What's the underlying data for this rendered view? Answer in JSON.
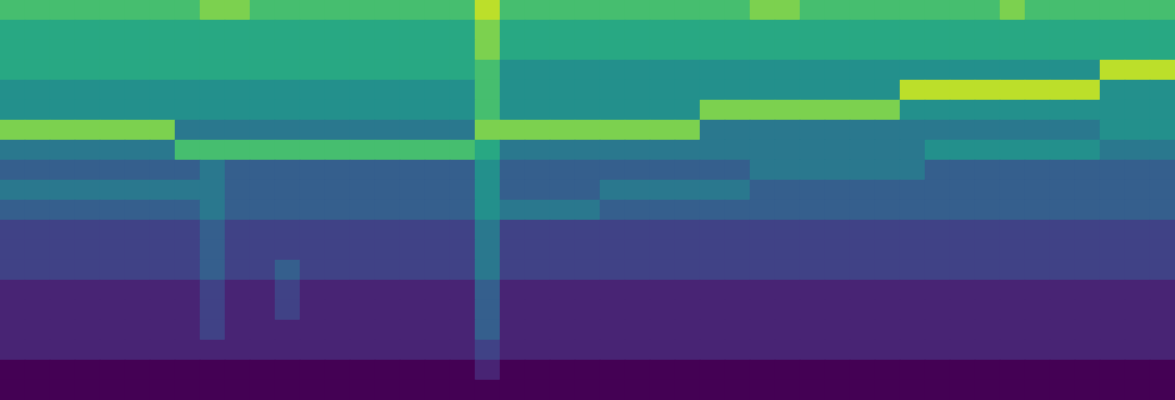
{
  "chart_data": {
    "type": "heatmap",
    "tick_labels": false,
    "color": "viridis",
    "zlim": [
      0,
      10
    ],
    "values": [
      [
        7,
        7,
        7,
        7,
        7,
        7,
        7,
        7,
        8,
        8,
        7,
        7,
        7,
        7,
        7,
        7,
        7,
        7,
        7,
        9,
        7,
        7,
        7,
        7,
        7,
        7,
        7,
        7,
        7,
        7,
        8,
        8,
        7,
        7,
        7,
        7,
        7,
        7,
        7,
        7,
        8,
        7,
        7,
        7,
        7,
        7,
        7
      ],
      [
        6,
        6,
        6,
        6,
        6,
        6,
        6,
        6,
        6,
        6,
        6,
        6,
        6,
        6,
        6,
        6,
        6,
        6,
        6,
        8,
        6,
        6,
        6,
        6,
        6,
        6,
        6,
        6,
        6,
        6,
        6,
        6,
        6,
        6,
        6,
        6,
        6,
        6,
        6,
        6,
        6,
        6,
        6,
        6,
        6,
        6,
        6
      ],
      [
        6,
        6,
        6,
        6,
        6,
        6,
        6,
        6,
        6,
        6,
        6,
        6,
        6,
        6,
        6,
        6,
        6,
        6,
        6,
        8,
        6,
        6,
        6,
        6,
        6,
        6,
        6,
        6,
        6,
        6,
        6,
        6,
        6,
        6,
        6,
        6,
        6,
        6,
        6,
        6,
        6,
        6,
        6,
        6,
        6,
        6,
        6
      ],
      [
        6,
        6,
        6,
        6,
        6,
        6,
        6,
        6,
        6,
        6,
        6,
        6,
        6,
        6,
        6,
        6,
        6,
        6,
        6,
        7,
        5,
        5,
        5,
        5,
        5,
        5,
        5,
        5,
        5,
        5,
        5,
        5,
        5,
        5,
        5,
        5,
        5,
        5,
        5,
        5,
        5,
        5,
        5,
        5,
        9,
        9,
        9
      ],
      [
        5,
        5,
        5,
        5,
        5,
        5,
        5,
        5,
        5,
        5,
        5,
        5,
        5,
        5,
        5,
        5,
        5,
        5,
        5,
        7,
        5,
        5,
        5,
        5,
        5,
        5,
        5,
        5,
        5,
        5,
        5,
        5,
        5,
        5,
        5,
        5,
        9,
        9,
        9,
        9,
        9,
        9,
        9,
        9,
        5,
        5,
        5
      ],
      [
        5,
        5,
        5,
        5,
        5,
        5,
        5,
        5,
        5,
        5,
        5,
        5,
        5,
        5,
        5,
        5,
        5,
        5,
        5,
        7,
        5,
        5,
        5,
        5,
        5,
        5,
        5,
        5,
        8,
        8,
        8,
        8,
        8,
        8,
        8,
        8,
        5,
        5,
        5,
        5,
        5,
        5,
        5,
        5,
        5,
        5,
        5
      ],
      [
        8,
        8,
        8,
        8,
        8,
        8,
        8,
        4,
        4,
        4,
        4,
        4,
        4,
        4,
        4,
        4,
        4,
        4,
        4,
        8,
        8,
        8,
        8,
        8,
        8,
        8,
        8,
        8,
        4,
        4,
        4,
        4,
        4,
        4,
        4,
        4,
        4,
        4,
        4,
        4,
        4,
        4,
        4,
        4,
        5,
        5,
        5
      ],
      [
        4,
        4,
        4,
        4,
        4,
        4,
        4,
        7,
        7,
        7,
        7,
        7,
        7,
        7,
        7,
        7,
        7,
        7,
        7,
        6,
        4,
        4,
        4,
        4,
        4,
        4,
        4,
        4,
        4,
        4,
        4,
        4,
        4,
        4,
        4,
        4,
        4,
        5,
        5,
        5,
        5,
        5,
        5,
        5,
        4,
        4,
        4
      ],
      [
        3,
        3,
        3,
        3,
        3,
        3,
        3,
        3,
        4,
        3,
        3,
        3,
        3,
        3,
        3,
        3,
        3,
        3,
        3,
        5,
        3,
        3,
        3,
        3,
        3,
        3,
        3,
        3,
        3,
        3,
        4,
        4,
        4,
        4,
        4,
        4,
        4,
        3,
        3,
        3,
        3,
        3,
        3,
        3,
        3,
        3,
        3
      ],
      [
        4,
        4,
        4,
        4,
        4,
        4,
        4,
        4,
        4,
        3,
        3,
        3,
        3,
        3,
        3,
        3,
        3,
        3,
        3,
        5,
        3,
        3,
        3,
        3,
        4,
        4,
        4,
        4,
        4,
        4,
        3,
        3,
        3,
        3,
        3,
        3,
        3,
        3,
        3,
        3,
        3,
        3,
        3,
        3,
        3,
        3,
        3
      ],
      [
        3,
        3,
        3,
        3,
        3,
        3,
        3,
        3,
        4,
        3,
        3,
        3,
        3,
        3,
        3,
        3,
        3,
        3,
        3,
        5,
        4,
        4,
        4,
        4,
        3,
        3,
        3,
        3,
        3,
        3,
        3,
        3,
        3,
        3,
        3,
        3,
        3,
        3,
        3,
        3,
        3,
        3,
        3,
        3,
        3,
        3,
        3
      ],
      [
        2,
        2,
        2,
        2,
        2,
        2,
        2,
        2,
        3,
        2,
        2,
        2,
        2,
        2,
        2,
        2,
        2,
        2,
        2,
        4,
        2,
        2,
        2,
        2,
        2,
        2,
        2,
        2,
        2,
        2,
        2,
        2,
        2,
        2,
        2,
        2,
        2,
        2,
        2,
        2,
        2,
        2,
        2,
        2,
        2,
        2,
        2
      ],
      [
        2,
        2,
        2,
        2,
        2,
        2,
        2,
        2,
        3,
        2,
        2,
        2,
        2,
        2,
        2,
        2,
        2,
        2,
        2,
        4,
        2,
        2,
        2,
        2,
        2,
        2,
        2,
        2,
        2,
        2,
        2,
        2,
        2,
        2,
        2,
        2,
        2,
        2,
        2,
        2,
        2,
        2,
        2,
        2,
        2,
        2,
        2
      ],
      [
        2,
        2,
        2,
        2,
        2,
        2,
        2,
        2,
        3,
        2,
        2,
        3,
        2,
        2,
        2,
        2,
        2,
        2,
        2,
        4,
        2,
        2,
        2,
        2,
        2,
        2,
        2,
        2,
        2,
        2,
        2,
        2,
        2,
        2,
        2,
        2,
        2,
        2,
        2,
        2,
        2,
        2,
        2,
        2,
        2,
        2,
        2
      ],
      [
        1,
        1,
        1,
        1,
        1,
        1,
        1,
        1,
        2,
        1,
        1,
        2,
        1,
        1,
        1,
        1,
        1,
        1,
        1,
        3,
        1,
        1,
        1,
        1,
        1,
        1,
        1,
        1,
        1,
        1,
        1,
        1,
        1,
        1,
        1,
        1,
        1,
        1,
        1,
        1,
        1,
        1,
        1,
        1,
        1,
        1,
        1
      ],
      [
        1,
        1,
        1,
        1,
        1,
        1,
        1,
        1,
        2,
        1,
        1,
        2,
        1,
        1,
        1,
        1,
        1,
        1,
        1,
        3,
        1,
        1,
        1,
        1,
        1,
        1,
        1,
        1,
        1,
        1,
        1,
        1,
        1,
        1,
        1,
        1,
        1,
        1,
        1,
        1,
        1,
        1,
        1,
        1,
        1,
        1,
        1
      ],
      [
        1,
        1,
        1,
        1,
        1,
        1,
        1,
        1,
        2,
        1,
        1,
        1,
        1,
        1,
        1,
        1,
        1,
        1,
        1,
        3,
        1,
        1,
        1,
        1,
        1,
        1,
        1,
        1,
        1,
        1,
        1,
        1,
        1,
        1,
        1,
        1,
        1,
        1,
        1,
        1,
        1,
        1,
        1,
        1,
        1,
        1,
        1
      ],
      [
        1,
        1,
        1,
        1,
        1,
        1,
        1,
        1,
        1,
        1,
        1,
        1,
        1,
        1,
        1,
        1,
        1,
        1,
        1,
        2,
        1,
        1,
        1,
        1,
        1,
        1,
        1,
        1,
        1,
        1,
        1,
        1,
        1,
        1,
        1,
        1,
        1,
        1,
        1,
        1,
        1,
        1,
        1,
        1,
        1,
        1,
        1
      ],
      [
        0,
        0,
        0,
        0,
        0,
        0,
        0,
        0,
        0,
        0,
        0,
        0,
        0,
        0,
        0,
        0,
        0,
        0,
        0,
        1,
        0,
        0,
        0,
        0,
        0,
        0,
        0,
        0,
        0,
        0,
        0,
        0,
        0,
        0,
        0,
        0,
        0,
        0,
        0,
        0,
        0,
        0,
        0,
        0,
        0,
        0,
        0
      ],
      [
        0,
        0,
        0,
        0,
        0,
        0,
        0,
        0,
        0,
        0,
        0,
        0,
        0,
        0,
        0,
        0,
        0,
        0,
        0,
        0,
        0,
        0,
        0,
        0,
        0,
        0,
        0,
        0,
        0,
        0,
        0,
        0,
        0,
        0,
        0,
        0,
        0,
        0,
        0,
        0,
        0,
        0,
        0,
        0,
        0,
        0,
        0
      ]
    ]
  }
}
